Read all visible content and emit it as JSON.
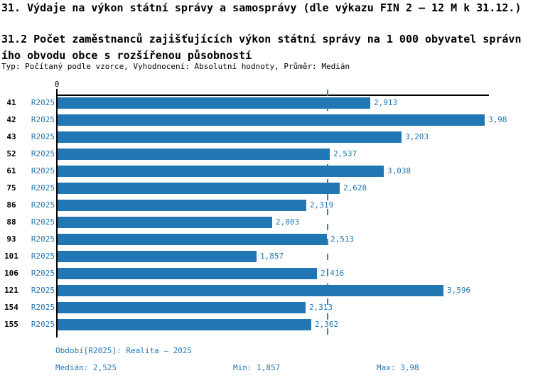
{
  "title": "31. Výdaje na výkon státní správy a samosprávy (dle výkazu FIN 2 – 12 M k 31.12.)",
  "subtitle": "31.2 Počet zaměstnanců zajišťujících výkon státní správy na 1 000 obyvatel správního obvodu obce s rozšířenou působností",
  "meta": "Typ: Počítaný podle vzorce, Vyhodnocení: Absolutní hodnoty, Průměr: Medián",
  "chart_data": {
    "type": "bar",
    "orientation": "horizontal",
    "title": "31.2 Počet zaměstnanců zajišťujících výkon státní správy na 1 000 obyvatel správního obvodu obce s rozšířenou působností",
    "categories": [
      "41",
      "42",
      "43",
      "52",
      "61",
      "75",
      "86",
      "88",
      "93",
      "101",
      "106",
      "121",
      "154",
      "155"
    ],
    "series": [
      {
        "name": "R2025",
        "values": [
          2.913,
          3.98,
          3.203,
          2.537,
          3.038,
          2.628,
          2.319,
          2.003,
          2.513,
          1.857,
          2.416,
          3.596,
          2.313,
          2.362
        ],
        "labels": [
          "2,913",
          "3,98",
          "3,203",
          "2,537",
          "3,038",
          "2,628",
          "2,319",
          "2,003",
          "2,513",
          "1,857",
          "2,416",
          "3,596",
          "2,313",
          "2,362"
        ]
      }
    ],
    "xlim": [
      0,
      4.02
    ],
    "zero_tick_label": "0",
    "median_line": 2.525,
    "grid": false,
    "legend": "none",
    "value_labels": "outside-end",
    "bar_color": "#2077b4",
    "median_line_color": "#2e86c0"
  },
  "footer": {
    "period": "Období[R2025]: Realita – 2025",
    "median": "Medián: 2,525",
    "min": "Min: 1,857",
    "max": "Max: 3,98"
  },
  "colors": {
    "accent_blue": "#1f77b4",
    "text_black": "#000000",
    "background": "#ffffff"
  }
}
